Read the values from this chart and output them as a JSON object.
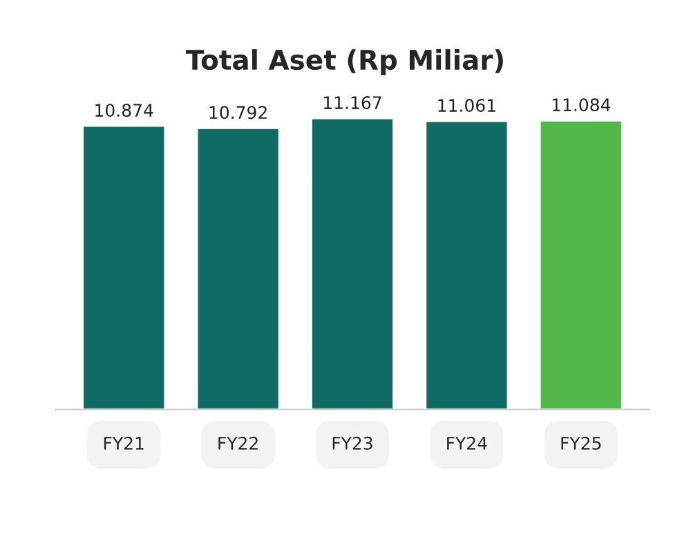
{
  "chart_data": {
    "type": "bar",
    "title": "Total Aset (Rp Miliar)",
    "categories": [
      "FY21",
      "FY22",
      "FY23",
      "FY24",
      "FY25"
    ],
    "values": [
      10874,
      10792,
      11167,
      11061,
      11084
    ],
    "value_labels": [
      "10.874",
      "10.792",
      "11.167",
      "11.061",
      "11.084"
    ],
    "colors": [
      "#0f6b63",
      "#0f6b63",
      "#0f6b63",
      "#0f6b63",
      "#52b848"
    ],
    "grid": false,
    "legend": false
  }
}
